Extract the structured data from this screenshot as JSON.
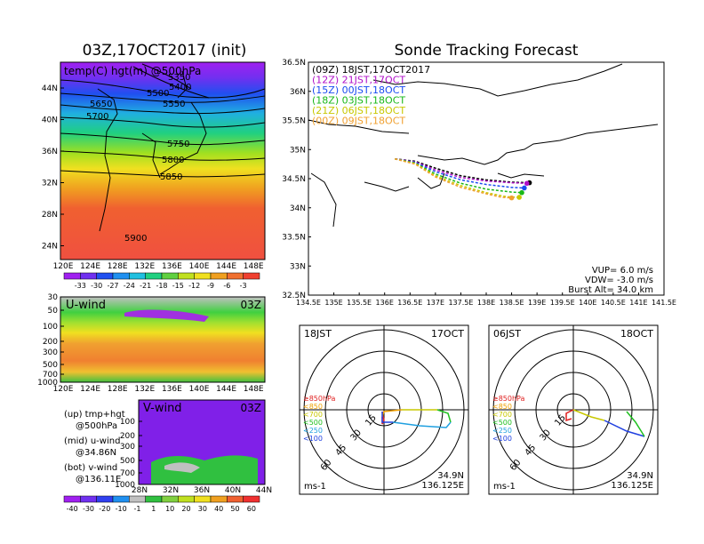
{
  "titles": {
    "left": "03Z,17OCT2017 (init)",
    "right": "Sonde Tracking Forecast"
  },
  "map_panel": {
    "label": "temp(C) hgt(m) @500hPa",
    "lat_ticks": [
      "44N",
      "40N",
      "36N",
      "32N",
      "28N",
      "24N"
    ],
    "lon_ticks": [
      "120E",
      "124E",
      "128E",
      "132E",
      "136E",
      "140E",
      "144E",
      "148E"
    ],
    "contours": [
      "5350",
      "5400",
      "5500",
      "5550",
      "5650",
      "5700",
      "5750",
      "5800",
      "5850",
      "5900"
    ],
    "colorbar": [
      "-33",
      "-30",
      "-27",
      "-24",
      "-21",
      "-18",
      "-15",
      "-12",
      "-9",
      "-6",
      "-3"
    ]
  },
  "uwind_panel": {
    "label": "U-wind",
    "time": "03Z",
    "p_ticks": [
      "30",
      "50",
      "100",
      "200",
      "300",
      "500",
      "700",
      "1000"
    ],
    "lon_ticks": [
      "120E",
      "124E",
      "128E",
      "132E",
      "136E",
      "140E",
      "144E",
      "148E"
    ]
  },
  "vwind_panel": {
    "label": "V-wind",
    "time": "03Z",
    "p_ticks": [
      "100",
      "200",
      "300",
      "500",
      "700",
      "1000"
    ],
    "lat_ticks": [
      "28N",
      "32N",
      "36N",
      "40N",
      "44N"
    ],
    "colorbar": [
      "-40",
      "-30",
      "-20",
      "-10",
      "-1",
      "1",
      "10",
      "20",
      "30",
      "40",
      "50",
      "60"
    ]
  },
  "legend_text": [
    {
      "a": "(up) tmp+hgt",
      "b": "@500hPa"
    },
    {
      "a": "(mid) u-wind",
      "b": "@34.86N"
    },
    {
      "a": "(bot) v-wind",
      "b": "@136.11E"
    }
  ],
  "track_panel": {
    "lat_ticks": [
      "36.5N",
      "36N",
      "35.5N",
      "35N",
      "34.5N",
      "34N",
      "33.5N",
      "33N",
      "32.5N"
    ],
    "lon_ticks": [
      "134.5E",
      "135E",
      "135.5E",
      "136E",
      "136.5E",
      "137E",
      "137.5E",
      "138E",
      "138.5E",
      "139E",
      "139.5E",
      "140E",
      "140.5E",
      "141E",
      "141.5E"
    ],
    "legend": [
      {
        "text": "(09Z)  18JST,17OCT2017",
        "color": "#000000"
      },
      {
        "text": "(12Z)  21JST,17OCT",
        "color": "#b010c8"
      },
      {
        "text": "(15Z)  00JST,18OCT",
        "color": "#1a4cf0"
      },
      {
        "text": "(18Z)  03JST,18OCT",
        "color": "#18b818"
      },
      {
        "text": "(21Z)  06JST,18OCT",
        "color": "#c8c800"
      },
      {
        "text": "(00Z)  09JST,18OCT",
        "color": "#f0a030"
      }
    ],
    "params": [
      "VUP=  6.0  m/s",
      "VDW= -3.0  m/s",
      "Burst Alt=  34.0  km"
    ]
  },
  "chart_data": [
    {
      "type": "line",
      "title": "Sonde Tracking Forecast",
      "xlim": [
        134.5,
        141.5
      ],
      "ylim": [
        32.5,
        36.5
      ],
      "series": [
        {
          "name": "(09Z) 18JST,17OCT2017",
          "x": [
            136.2,
            136.6,
            137.0,
            137.5,
            138.0,
            138.5,
            138.85
          ],
          "y": [
            34.84,
            34.8,
            34.68,
            34.55,
            34.48,
            34.44,
            34.43
          ]
        },
        {
          "name": "(12Z) 21JST,17OCT",
          "x": [
            136.2,
            136.6,
            137.0,
            137.5,
            138.0,
            138.5,
            138.8
          ],
          "y": [
            34.84,
            34.79,
            34.65,
            34.52,
            34.46,
            34.43,
            34.42
          ]
        },
        {
          "name": "(15Z) 00JST,18OCT",
          "x": [
            136.2,
            136.6,
            137.0,
            137.5,
            138.0,
            138.5,
            138.75
          ],
          "y": [
            34.84,
            34.78,
            34.62,
            34.48,
            34.4,
            34.35,
            34.34
          ]
        },
        {
          "name": "(18Z) 03JST,18OCT",
          "x": [
            136.2,
            136.6,
            137.0,
            137.5,
            138.0,
            138.5,
            138.7
          ],
          "y": [
            34.84,
            34.77,
            34.58,
            34.42,
            34.32,
            34.27,
            34.26
          ]
        },
        {
          "name": "(21Z) 06JST,18OCT",
          "x": [
            136.2,
            136.6,
            137.0,
            137.5,
            138.0,
            138.4,
            138.65
          ],
          "y": [
            34.84,
            34.76,
            34.55,
            34.38,
            34.26,
            34.19,
            34.18
          ]
        },
        {
          "name": "(00Z) 09JST,18OCT",
          "x": [
            136.2,
            136.6,
            137.0,
            137.5,
            138.0,
            138.3,
            138.5
          ],
          "y": [
            34.84,
            34.75,
            34.53,
            34.35,
            34.24,
            34.18,
            34.17
          ]
        }
      ]
    },
    {
      "type": "scatter",
      "title": "18JST 17OCT hodograph",
      "rings": [
        "15",
        "30",
        "45",
        "60"
      ],
      "pressure_legend": [
        "≥850hPa",
        "<850",
        "<700",
        "<500",
        "<250",
        "<100"
      ],
      "unit": "ms-1",
      "location": [
        "34.9N",
        "136.125E"
      ]
    },
    {
      "type": "scatter",
      "title": "06JST 18OCT hodograph",
      "rings": [
        "15",
        "30",
        "45",
        "60"
      ],
      "pressure_legend": [
        "≥850hPa",
        "<850",
        "<700",
        "<500",
        "<250",
        "<100"
      ],
      "unit": "ms-1",
      "location": [
        "34.9N",
        "136.125E"
      ]
    }
  ],
  "hodo_left": {
    "time": "18JST",
    "date": "17OCT",
    "rings": [
      "15",
      "30",
      "45",
      "60"
    ],
    "unit": "ms-1",
    "loc1": "34.9N",
    "loc2": "136.125E",
    "press": [
      {
        "t": "≥850hPa",
        "c": "#e02020"
      },
      {
        "t": "<850",
        "c": "#f0a000"
      },
      {
        "t": "<700",
        "c": "#c8c800"
      },
      {
        "t": "<500",
        "c": "#20c020"
      },
      {
        "t": "<250",
        "c": "#20a0e0"
      },
      {
        "t": "<100",
        "c": "#2040e0"
      }
    ]
  },
  "hodo_right": {
    "time": "06JST",
    "date": "18OCT",
    "rings": [
      "15",
      "30",
      "45",
      "60"
    ],
    "unit": "ms-1",
    "loc1": "34.9N",
    "loc2": "136.125E",
    "press": [
      {
        "t": "≥850hPa",
        "c": "#e02020"
      },
      {
        "t": "<850",
        "c": "#f0a000"
      },
      {
        "t": "<700",
        "c": "#c8c800"
      },
      {
        "t": "<500",
        "c": "#20c020"
      },
      {
        "t": "<250",
        "c": "#20a0e0"
      },
      {
        "t": "<100",
        "c": "#2040e0"
      }
    ]
  }
}
